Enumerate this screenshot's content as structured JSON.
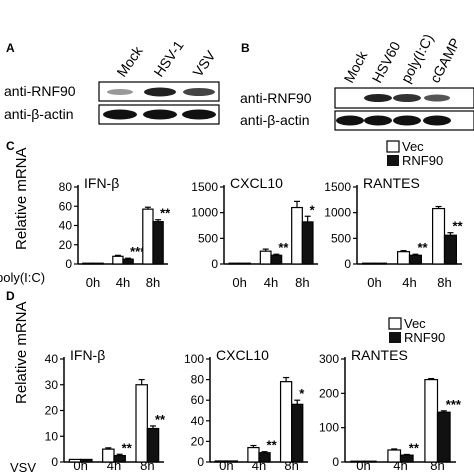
{
  "panels": {
    "A": {
      "label": "A",
      "lanes": [
        "Mock",
        "HSV-1",
        "VSV"
      ],
      "antibodies": [
        "anti-RNF90",
        "anti-β-actin"
      ]
    },
    "B": {
      "label": "B",
      "lanes": [
        "Mock",
        "HSV60",
        "poly(I:C)",
        "cGAMP"
      ],
      "antibodies": [
        "anti-RNF90",
        "anti-β-actin"
      ]
    },
    "C": {
      "label": "C",
      "treatment": "poly(I:C)"
    },
    "D": {
      "label": "D",
      "treatment": "VSV"
    }
  },
  "ylabel": "Relative mRNA",
  "legend": [
    "Vec",
    "RNF90"
  ],
  "colors": {
    "vec": "#ffffff",
    "rnf90": "#111111"
  },
  "chart_data": [
    {
      "type": "bar",
      "panel": "C",
      "title": "IFN-β",
      "categories": [
        "0h",
        "4h",
        "8h"
      ],
      "series": [
        {
          "name": "Vec",
          "values": [
            0.5,
            8,
            57
          ]
        },
        {
          "name": "RNF90",
          "values": [
            0.5,
            5,
            44
          ]
        }
      ],
      "errors": [
        [
          0,
          1,
          2
        ],
        [
          0,
          1,
          2
        ]
      ],
      "ylim": [
        0,
        80
      ],
      "yticks": [
        "0",
        "20",
        "40",
        "60",
        "80"
      ],
      "annotations": [
        "",
        "***",
        "**"
      ]
    },
    {
      "type": "bar",
      "panel": "C",
      "title": "CXCL10",
      "categories": [
        "0h",
        "4h",
        "8h"
      ],
      "series": [
        {
          "name": "Vec",
          "values": [
            5,
            250,
            1100
          ]
        },
        {
          "name": "RNF90",
          "values": [
            5,
            170,
            820
          ]
        }
      ],
      "errors": [
        [
          0,
          40,
          120
        ],
        [
          0,
          20,
          110
        ]
      ],
      "ylim": [
        0,
        1500
      ],
      "yticks": [
        "0",
        "500",
        "1000",
        "1500"
      ],
      "annotations": [
        "",
        "**",
        "*"
      ]
    },
    {
      "type": "bar",
      "panel": "C",
      "title": "RANTES",
      "categories": [
        "0h",
        "4h",
        "8h"
      ],
      "series": [
        {
          "name": "Vec",
          "values": [
            5,
            240,
            1080
          ]
        },
        {
          "name": "RNF90",
          "values": [
            5,
            170,
            560
          ]
        }
      ],
      "errors": [
        [
          0,
          20,
          40
        ],
        [
          0,
          20,
          50
        ]
      ],
      "ylim": [
        0,
        1500
      ],
      "yticks": [
        "0",
        "500",
        "1000",
        "1500"
      ],
      "annotations": [
        "",
        "**",
        "**"
      ]
    },
    {
      "type": "bar",
      "panel": "D",
      "title": "IFN-β",
      "categories": [
        "0h",
        "4h",
        "8h"
      ],
      "series": [
        {
          "name": "Vec",
          "values": [
            1,
            5,
            30
          ]
        },
        {
          "name": "RNF90",
          "values": [
            1,
            2.5,
            13
          ]
        }
      ],
      "errors": [
        [
          0,
          0.5,
          2
        ],
        [
          0,
          0.5,
          1
        ]
      ],
      "ylim": [
        0,
        40
      ],
      "yticks": [
        "0",
        "10",
        "20",
        "30",
        "40"
      ],
      "annotations": [
        "",
        "**",
        "**"
      ]
    },
    {
      "type": "bar",
      "panel": "D",
      "title": "CXCL10",
      "categories": [
        "0h",
        "4h",
        "8h"
      ],
      "series": [
        {
          "name": "Vec",
          "values": [
            1,
            14,
            78
          ]
        },
        {
          "name": "RNF90",
          "values": [
            1,
            9,
            56
          ]
        }
      ],
      "errors": [
        [
          0,
          2,
          4
        ],
        [
          0,
          1,
          4
        ]
      ],
      "ylim": [
        0,
        100
      ],
      "yticks": [
        "0",
        "20",
        "40",
        "60",
        "80",
        "100"
      ],
      "annotations": [
        "",
        "**",
        "*"
      ]
    },
    {
      "type": "bar",
      "panel": "D",
      "title": "RANTES",
      "categories": [
        "0h",
        "4h",
        "8h"
      ],
      "series": [
        {
          "name": "Vec",
          "values": [
            2,
            35,
            240
          ]
        },
        {
          "name": "RNF90",
          "values": [
            2,
            20,
            145
          ]
        }
      ],
      "errors": [
        [
          0,
          3,
          3
        ],
        [
          0,
          2,
          4
        ]
      ],
      "ylim": [
        0,
        300
      ],
      "yticks": [
        "0",
        "100",
        "200",
        "300"
      ],
      "annotations": [
        "",
        "**",
        "***"
      ]
    }
  ]
}
